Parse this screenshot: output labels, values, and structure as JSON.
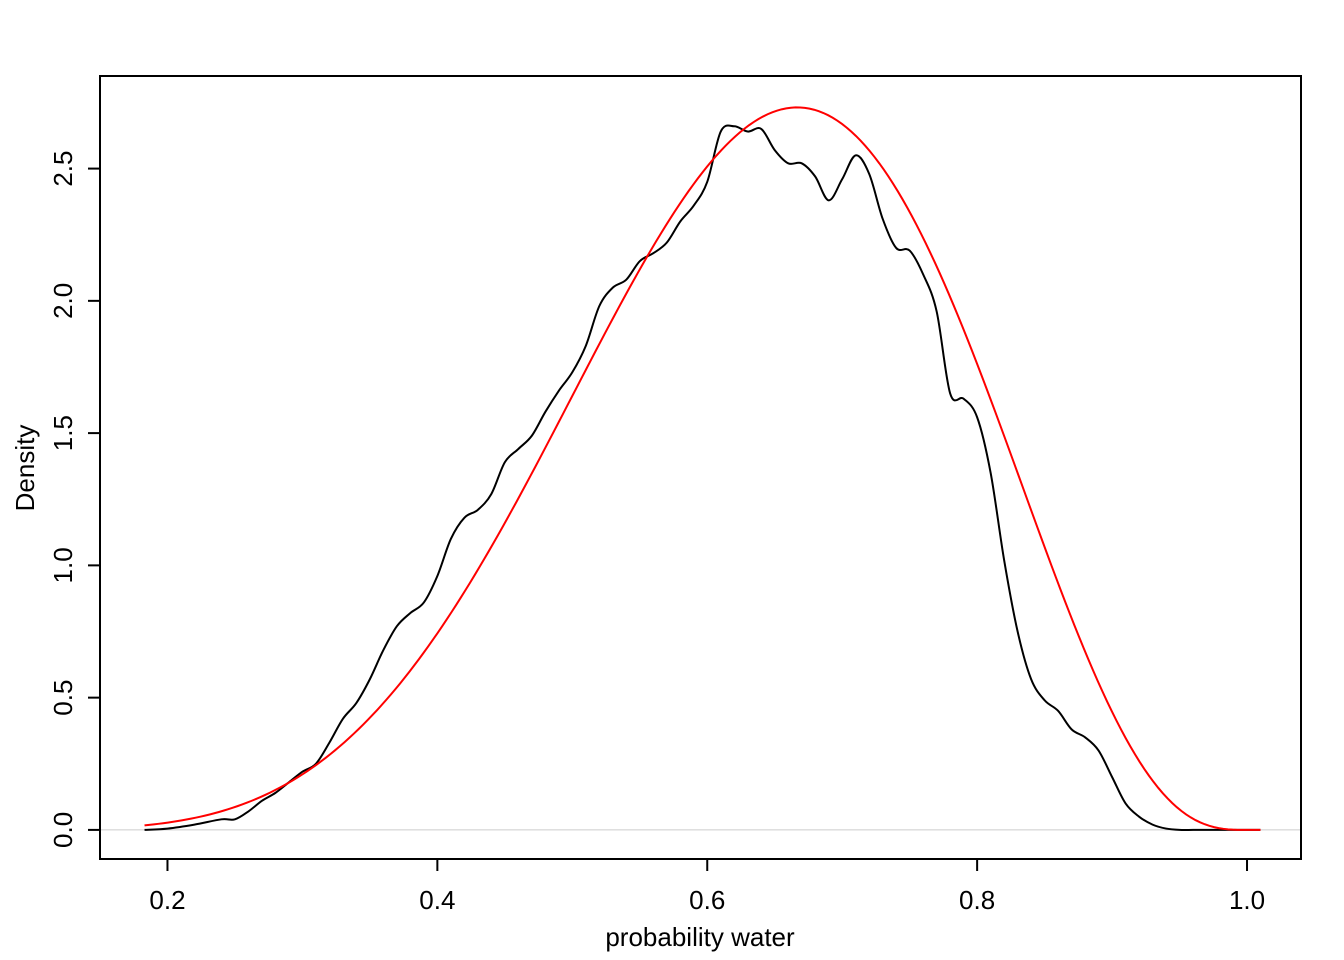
{
  "chart_data": {
    "type": "line",
    "title": "",
    "xlabel": "probability water",
    "ylabel": "Density",
    "xlim": [
      0.15,
      1.04
    ],
    "ylim": [
      -0.11,
      2.85
    ],
    "x_ticks": [
      0.2,
      0.4,
      0.6,
      0.8,
      1.0
    ],
    "x_tick_labels": [
      "0.2",
      "0.4",
      "0.6",
      "0.8",
      "1.0"
    ],
    "y_ticks": [
      0.0,
      0.5,
      1.0,
      1.5,
      2.0,
      2.5
    ],
    "y_tick_labels": [
      "0.0",
      "0.5",
      "1.0",
      "1.5",
      "2.0",
      "2.5"
    ],
    "zero_line": true,
    "grid": false,
    "legend": "none",
    "colors": {
      "density": "#000000",
      "curve": "#ff0000",
      "zero_line": "#cccccc"
    },
    "series": [
      {
        "color": "#000000",
        "x": [
          0.183,
          0.2,
          0.22,
          0.24,
          0.25,
          0.26,
          0.27,
          0.28,
          0.29,
          0.3,
          0.31,
          0.32,
          0.33,
          0.34,
          0.35,
          0.36,
          0.37,
          0.38,
          0.39,
          0.4,
          0.41,
          0.42,
          0.43,
          0.44,
          0.45,
          0.46,
          0.47,
          0.48,
          0.49,
          0.5,
          0.51,
          0.52,
          0.53,
          0.54,
          0.55,
          0.56,
          0.57,
          0.58,
          0.59,
          0.6,
          0.61,
          0.62,
          0.63,
          0.64,
          0.65,
          0.66,
          0.67,
          0.68,
          0.69,
          0.7,
          0.71,
          0.72,
          0.73,
          0.74,
          0.75,
          0.76,
          0.77,
          0.78,
          0.79,
          0.8,
          0.81,
          0.82,
          0.83,
          0.84,
          0.85,
          0.86,
          0.87,
          0.88,
          0.89,
          0.9,
          0.91,
          0.92,
          0.93,
          0.94,
          0.95,
          0.96,
          0.97,
          0.98,
          0.99,
          1.0,
          1.01
        ],
        "y": [
          0.0,
          0.005,
          0.02,
          0.04,
          0.04,
          0.07,
          0.11,
          0.14,
          0.18,
          0.22,
          0.25,
          0.33,
          0.42,
          0.48,
          0.57,
          0.68,
          0.77,
          0.82,
          0.86,
          0.96,
          1.1,
          1.18,
          1.21,
          1.27,
          1.39,
          1.44,
          1.49,
          1.58,
          1.66,
          1.73,
          1.83,
          1.98,
          2.05,
          2.08,
          2.15,
          2.18,
          2.22,
          2.3,
          2.36,
          2.45,
          2.64,
          2.66,
          2.64,
          2.65,
          2.57,
          2.52,
          2.52,
          2.47,
          2.38,
          2.46,
          2.55,
          2.48,
          2.31,
          2.2,
          2.19,
          2.1,
          1.96,
          1.65,
          1.63,
          1.56,
          1.35,
          1.02,
          0.75,
          0.57,
          0.49,
          0.45,
          0.38,
          0.35,
          0.3,
          0.2,
          0.1,
          0.05,
          0.02,
          0.005,
          0.0,
          0.0,
          0.0,
          0.0,
          0.0,
          0.0,
          0.0
        ]
      },
      {
        "color": "#ff0000",
        "function": "beta",
        "alpha": 7,
        "beta": 4,
        "x_range": [
          0.183,
          1.01
        ]
      }
    ]
  }
}
